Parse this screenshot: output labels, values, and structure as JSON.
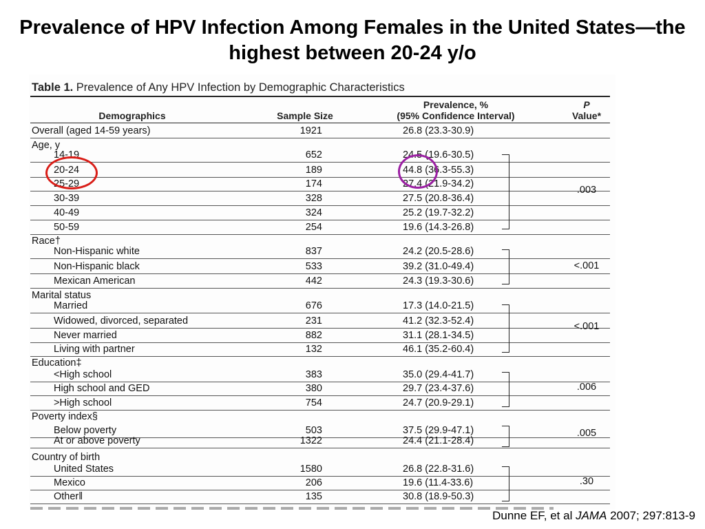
{
  "slide": {
    "title": "Prevalence of HPV Infection Among Females in the United States—the highest between 20-24 y/o",
    "citation_author": "Dunne EF, et al ",
    "citation_journal": "JAMA",
    "citation_rest": " 2007; 297:813-9"
  },
  "table": {
    "caption_label": "Table 1.",
    "caption_text": " Prevalence of Any HPV Infection by Demographic Characteristics",
    "headers": {
      "demographics": "Demographics",
      "sample_size": "Sample Size",
      "prevalence_1": "Prevalence, %",
      "prevalence_2": "(95% Confidence Interval)",
      "p_1": "P",
      "p_2": "Value*"
    },
    "rows": [
      {
        "label": "Overall (aged 14-59 years)",
        "size": "1921",
        "prev": "26.8 (23.3-30.9)"
      },
      {
        "label": "Age, y",
        "size": "",
        "prev": ""
      },
      {
        "label": "14-19",
        "size": "652",
        "prev": "24.5 (19.6-30.5)"
      },
      {
        "label": "20-24",
        "size": "189",
        "prev": "44.8 (36.3-55.3)"
      },
      {
        "label": "25-29",
        "size": "174",
        "prev": "27.4 (21.9-34.2)"
      },
      {
        "label": "30-39",
        "size": "328",
        "prev": "27.5 (20.8-36.4)"
      },
      {
        "label": "40-49",
        "size": "324",
        "prev": "25.2 (19.7-32.2)"
      },
      {
        "label": "50-59",
        "size": "254",
        "prev": "19.6 (14.3-26.8)"
      },
      {
        "label": "Race†",
        "size": "",
        "prev": ""
      },
      {
        "label": "Non-Hispanic white",
        "size": "837",
        "prev": "24.2 (20.5-28.6)"
      },
      {
        "label": "Non-Hispanic black",
        "size": "533",
        "prev": "39.2 (31.0-49.4)"
      },
      {
        "label": "Mexican American",
        "size": "442",
        "prev": "24.3 (19.3-30.6)"
      },
      {
        "label": "Marital status",
        "size": "",
        "prev": ""
      },
      {
        "label": "Married",
        "size": "676",
        "prev": "17.3 (14.0-21.5)"
      },
      {
        "label": "Widowed, divorced, separated",
        "size": "231",
        "prev": "41.2 (32.3-52.4)"
      },
      {
        "label": "Never married",
        "size": "882",
        "prev": "31.1 (28.1-34.5)"
      },
      {
        "label": "Living with partner",
        "size": "132",
        "prev": "46.1 (35.2-60.4)"
      },
      {
        "label": "Education‡",
        "size": "",
        "prev": ""
      },
      {
        "label": "<High school",
        "size": "383",
        "prev": "35.0 (29.4-41.7)"
      },
      {
        "label": "High school and GED",
        "size": "380",
        "prev": "29.7 (23.4-37.6)"
      },
      {
        "label": ">High school",
        "size": "754",
        "prev": "24.7 (20.9-29.1)"
      },
      {
        "label": "Poverty index§",
        "size": "",
        "prev": ""
      },
      {
        "label": "Below poverty",
        "size": "503",
        "prev": "37.5 (29.9-47.1)"
      },
      {
        "label": "At or above poverty",
        "size": "1322",
        "prev": "24.4 (21.1-28.4)"
      },
      {
        "label": "Country of birth",
        "size": "",
        "prev": ""
      },
      {
        "label": "United States",
        "size": "1580",
        "prev": "26.8 (22.8-31.6)"
      },
      {
        "label": "Mexico",
        "size": "206",
        "prev": "19.6 (11.4-33.6)"
      },
      {
        "label": "Other‖",
        "size": "135",
        "prev": "30.8 (18.9-50.3)"
      }
    ],
    "p_values": {
      "age": ".003",
      "race": "<.001",
      "marital": "<.001",
      "education": ".006",
      "poverty": ".005",
      "country": ".30"
    }
  },
  "colors": {
    "annotation_red": "#d91e18",
    "annotation_purple": "#9b1fa3"
  }
}
